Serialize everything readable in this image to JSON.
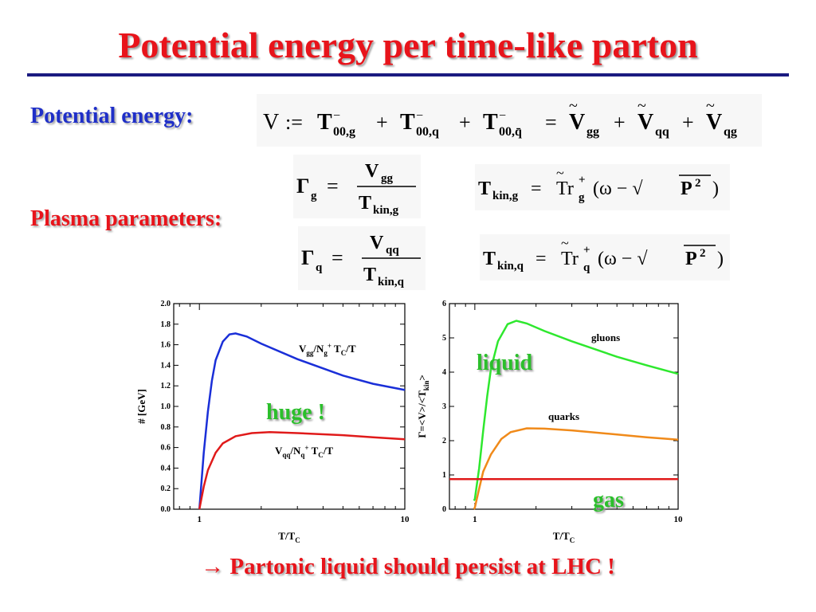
{
  "title": "Potential energy per time-like parton",
  "labels": {
    "potential": "Potential energy:",
    "plasma": "Plasma parameters:"
  },
  "bottom": {
    "arrow": "→",
    "text": "Partonic liquid should persist at LHC !"
  },
  "annotations": {
    "huge": "huge !",
    "liquid": "liquid",
    "gas": "gas"
  },
  "colors": {
    "title": "#e8141b",
    "potential_label": "#1f2fc8",
    "green_annot": "#2bbf2b"
  },
  "chart_data": [
    {
      "type": "line",
      "ylabel": "# [GeV]",
      "xlabel": "T/T",
      "xlabel_sub": "C",
      "xscale": "log",
      "xlim": [
        0.75,
        10
      ],
      "ylim": [
        0.0,
        2.0
      ],
      "yticks": [
        "0.0",
        "0.2",
        "0.4",
        "0.6",
        "0.8",
        "1.0",
        "1.2",
        "1.4",
        "1.6",
        "1.8",
        "2.0"
      ],
      "xticks": [
        "1",
        "10"
      ],
      "series": [
        {
          "color": "#1a2fd8",
          "points": [
            [
              1.0,
              0.0
            ],
            [
              1.05,
              0.55
            ],
            [
              1.1,
              0.95
            ],
            [
              1.15,
              1.25
            ],
            [
              1.2,
              1.45
            ],
            [
              1.3,
              1.63
            ],
            [
              1.4,
              1.7
            ],
            [
              1.5,
              1.71
            ],
            [
              1.7,
              1.68
            ],
            [
              2.0,
              1.61
            ],
            [
              3.0,
              1.46
            ],
            [
              5.0,
              1.3
            ],
            [
              7.0,
              1.22
            ],
            [
              10.0,
              1.16
            ]
          ]
        },
        {
          "color": "#e01a1a",
          "points": [
            [
              1.0,
              0.0
            ],
            [
              1.05,
              0.22
            ],
            [
              1.1,
              0.38
            ],
            [
              1.2,
              0.55
            ],
            [
              1.3,
              0.64
            ],
            [
              1.5,
              0.71
            ],
            [
              1.8,
              0.74
            ],
            [
              2.2,
              0.75
            ],
            [
              3.0,
              0.74
            ],
            [
              5.0,
              0.72
            ],
            [
              7.0,
              0.7
            ],
            [
              10.0,
              0.68
            ]
          ]
        }
      ]
    },
    {
      "type": "line",
      "ylabel": "Γ=<V>/<T",
      "ylabel_sub": "kin",
      "ylabel_end": ">",
      "xlabel": "T/T",
      "xlabel_sub": "C",
      "xscale": "log",
      "xlim": [
        0.75,
        10
      ],
      "ylim": [
        0,
        6
      ],
      "yticks": [
        "0",
        "1",
        "2",
        "3",
        "4",
        "5",
        "6"
      ],
      "xticks": [
        "1",
        "10"
      ],
      "series": [
        {
          "name": "gluons",
          "color": "#2ee82e",
          "points": [
            [
              0.99,
              0.25
            ],
            [
              1.0,
              0.3
            ],
            [
              1.05,
              1.2
            ],
            [
              1.1,
              2.3
            ],
            [
              1.15,
              3.3
            ],
            [
              1.2,
              4.1
            ],
            [
              1.3,
              4.9
            ],
            [
              1.45,
              5.4
            ],
            [
              1.6,
              5.5
            ],
            [
              1.8,
              5.42
            ],
            [
              2.2,
              5.2
            ],
            [
              3.0,
              4.9
            ],
            [
              5.0,
              4.45
            ],
            [
              7.0,
              4.2
            ],
            [
              10.0,
              3.95
            ]
          ]
        },
        {
          "name": "quarks",
          "color": "#f08a1a",
          "points": [
            [
              0.99,
              0.0
            ],
            [
              1.0,
              0.05
            ],
            [
              1.05,
              0.6
            ],
            [
              1.1,
              1.1
            ],
            [
              1.2,
              1.6
            ],
            [
              1.35,
              2.05
            ],
            [
              1.5,
              2.25
            ],
            [
              1.8,
              2.36
            ],
            [
              2.2,
              2.35
            ],
            [
              3.0,
              2.3
            ],
            [
              5.0,
              2.18
            ],
            [
              7.0,
              2.1
            ],
            [
              10.0,
              2.03
            ]
          ]
        },
        {
          "name": "",
          "color": "#e01a1a",
          "points": [
            [
              0.75,
              0.88
            ],
            [
              10.0,
              0.88
            ]
          ]
        }
      ]
    }
  ]
}
